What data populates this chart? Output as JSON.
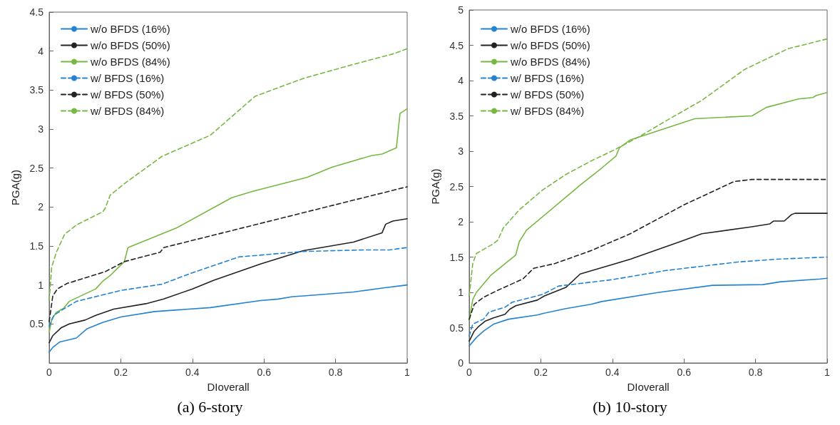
{
  "chart_data": [
    {
      "type": "line",
      "title": "(a) 6-story",
      "xlabel": "DIoverall",
      "ylabel": "PGA(g)",
      "xlim": [
        0,
        1
      ],
      "xticks": [
        0,
        0.2,
        0.4,
        0.6,
        0.8,
        1
      ],
      "ylim": [
        0,
        4.5
      ],
      "yticks": [
        0.5,
        1,
        1.5,
        2,
        2.5,
        3,
        3.5,
        4,
        4.5
      ],
      "grid": false,
      "legend": "top left",
      "marker": "none",
      "series": [
        {
          "name": "w/o BFDS (16%)",
          "color": "#2383d0",
          "line_style": "solid",
          "x": [
            0,
            0.01,
            0.03,
            0.076,
            0.106,
            0.149,
            0.2,
            0.295,
            0.45,
            0.59,
            0.64,
            0.68,
            0.71,
            0.85,
            0.93,
            1
          ],
          "values": [
            0.14,
            0.2,
            0.27,
            0.32,
            0.44,
            0.52,
            0.59,
            0.66,
            0.71,
            0.8,
            0.82,
            0.85,
            0.86,
            0.91,
            0.96,
            1.0
          ]
        },
        {
          "name": "w/o BFDS (50%)",
          "color": "#222222",
          "line_style": "solid",
          "x": [
            0,
            0.01,
            0.033,
            0.056,
            0.1,
            0.13,
            0.18,
            0.27,
            0.32,
            0.4,
            0.46,
            0.59,
            0.71,
            0.85,
            0.93,
            0.94,
            0.96,
            1
          ],
          "values": [
            0.26,
            0.35,
            0.45,
            0.5,
            0.55,
            0.61,
            0.69,
            0.76,
            0.82,
            0.95,
            1.06,
            1.27,
            1.44,
            1.55,
            1.67,
            1.78,
            1.82,
            1.85
          ]
        },
        {
          "name": "w/o BFDS (84%)",
          "color": "#77b843",
          "line_style": "solid",
          "x": [
            0,
            0.007,
            0.02,
            0.04,
            0.056,
            0.13,
            0.15,
            0.17,
            0.21,
            0.22,
            0.355,
            0.51,
            0.567,
            0.72,
            0.79,
            0.9,
            0.93,
            0.97,
            0.98,
            0.99,
            1
          ],
          "values": [
            0.39,
            0.56,
            0.65,
            0.7,
            0.79,
            0.95,
            1.05,
            1.12,
            1.3,
            1.48,
            1.73,
            2.12,
            2.2,
            2.38,
            2.51,
            2.66,
            2.68,
            2.76,
            3.2,
            3.23,
            3.26
          ]
        },
        {
          "name": "w/ BFDS (16%)",
          "color": "#2383d0",
          "line_style": "dashed",
          "x": [
            0,
            0.013,
            0.036,
            0.076,
            0.2,
            0.315,
            0.39,
            0.53,
            0.71,
            0.88,
            0.95,
            1
          ],
          "values": [
            0.47,
            0.61,
            0.68,
            0.79,
            0.93,
            1.01,
            1.14,
            1.36,
            1.43,
            1.45,
            1.45,
            1.48
          ]
        },
        {
          "name": "w/ BFDS (50%)",
          "color": "#222222",
          "line_style": "dashed",
          "x": [
            0,
            0.01,
            0.023,
            0.05,
            0.156,
            0.21,
            0.31,
            0.32,
            1
          ],
          "values": [
            0.53,
            0.86,
            0.95,
            1.02,
            1.17,
            1.3,
            1.42,
            1.48,
            2.26
          ]
        },
        {
          "name": "w/ BFDS (84%)",
          "color": "#77b843",
          "line_style": "dashed",
          "x": [
            0,
            0.007,
            0.02,
            0.043,
            0.076,
            0.15,
            0.156,
            0.17,
            0.21,
            0.315,
            0.45,
            0.52,
            0.575,
            0.71,
            0.85,
            0.965,
            1
          ],
          "values": [
            0.8,
            1.23,
            1.42,
            1.65,
            1.77,
            1.94,
            1.98,
            2.15,
            2.3,
            2.65,
            2.92,
            3.2,
            3.42,
            3.65,
            3.83,
            3.97,
            4.03
          ]
        }
      ]
    },
    {
      "type": "line",
      "title": "(b) 10-story",
      "xlabel": "DIoverall",
      "ylabel": "PGA(g)",
      "xlim": [
        0,
        1
      ],
      "xticks": [
        0,
        0.2,
        0.4,
        0.6,
        0.8,
        1
      ],
      "ylim": [
        0,
        5
      ],
      "yticks": [
        0,
        0.5,
        1,
        1.5,
        2,
        2.5,
        3,
        3.5,
        4,
        4.5,
        5
      ],
      "grid": false,
      "legend": "top left",
      "marker": "none",
      "series": [
        {
          "name": "w/o BFDS (16%)",
          "color": "#2383d0",
          "line_style": "solid",
          "x": [
            0,
            0.02,
            0.04,
            0.068,
            0.11,
            0.19,
            0.205,
            0.27,
            0.34,
            0.37,
            0.53,
            0.68,
            0.82,
            0.87,
            0.98,
            1
          ],
          "values": [
            0.24,
            0.36,
            0.45,
            0.55,
            0.62,
            0.68,
            0.7,
            0.77,
            0.83,
            0.87,
            1.0,
            1.1,
            1.11,
            1.15,
            1.19,
            1.2
          ]
        },
        {
          "name": "w/o BFDS (50%)",
          "color": "#222222",
          "line_style": "solid",
          "x": [
            0,
            0.014,
            0.027,
            0.044,
            0.068,
            0.1,
            0.113,
            0.13,
            0.19,
            0.21,
            0.27,
            0.31,
            0.41,
            0.45,
            0.59,
            0.65,
            0.79,
            0.84,
            0.85,
            0.88,
            0.9,
            0.91,
            1
          ],
          "values": [
            0.31,
            0.45,
            0.52,
            0.59,
            0.64,
            0.69,
            0.76,
            0.81,
            0.89,
            0.95,
            1.07,
            1.26,
            1.41,
            1.47,
            1.72,
            1.83,
            1.93,
            1.97,
            2.01,
            2.01,
            2.1,
            2.12,
            2.12
          ]
        },
        {
          "name": "w/o BFDS (84%)",
          "color": "#77b843",
          "line_style": "solid",
          "x": [
            0,
            0.01,
            0.02,
            0.06,
            0.13,
            0.14,
            0.16,
            0.31,
            0.37,
            0.41,
            0.42,
            0.45,
            0.63,
            0.79,
            0.83,
            0.92,
            0.96,
            0.97,
            1
          ],
          "values": [
            0.6,
            0.9,
            1.0,
            1.24,
            1.53,
            1.72,
            1.88,
            2.52,
            2.76,
            2.93,
            3.05,
            3.16,
            3.46,
            3.5,
            3.62,
            3.74,
            3.76,
            3.79,
            3.83
          ]
        },
        {
          "name": "w/ BFDS (16%)",
          "color": "#2383d0",
          "line_style": "dashed",
          "x": [
            0,
            0.01,
            0.04,
            0.055,
            0.1,
            0.12,
            0.205,
            0.25,
            0.4,
            0.55,
            0.75,
            0.86,
            1
          ],
          "values": [
            0.38,
            0.55,
            0.62,
            0.72,
            0.79,
            0.86,
            0.97,
            1.09,
            1.18,
            1.31,
            1.43,
            1.47,
            1.5
          ]
        },
        {
          "name": "w/ BFDS (50%)",
          "color": "#222222",
          "line_style": "dashed",
          "x": [
            0,
            0.014,
            0.04,
            0.08,
            0.15,
            0.18,
            0.24,
            0.34,
            0.45,
            0.6,
            0.74,
            0.79,
            1
          ],
          "values": [
            0.62,
            0.83,
            0.93,
            1.03,
            1.19,
            1.34,
            1.41,
            1.59,
            1.83,
            2.24,
            2.57,
            2.6,
            2.6
          ]
        },
        {
          "name": "w/ BFDS (84%)",
          "color": "#77b843",
          "line_style": "dashed",
          "x": [
            0,
            0.01,
            0.02,
            0.068,
            0.08,
            0.095,
            0.14,
            0.205,
            0.27,
            0.34,
            0.41,
            0.48,
            0.55,
            0.65,
            0.77,
            0.89,
            1
          ],
          "values": [
            0.95,
            1.41,
            1.55,
            1.69,
            1.74,
            1.91,
            2.17,
            2.45,
            2.67,
            2.86,
            3.03,
            3.22,
            3.43,
            3.72,
            4.16,
            4.45,
            4.59
          ]
        }
      ]
    }
  ]
}
